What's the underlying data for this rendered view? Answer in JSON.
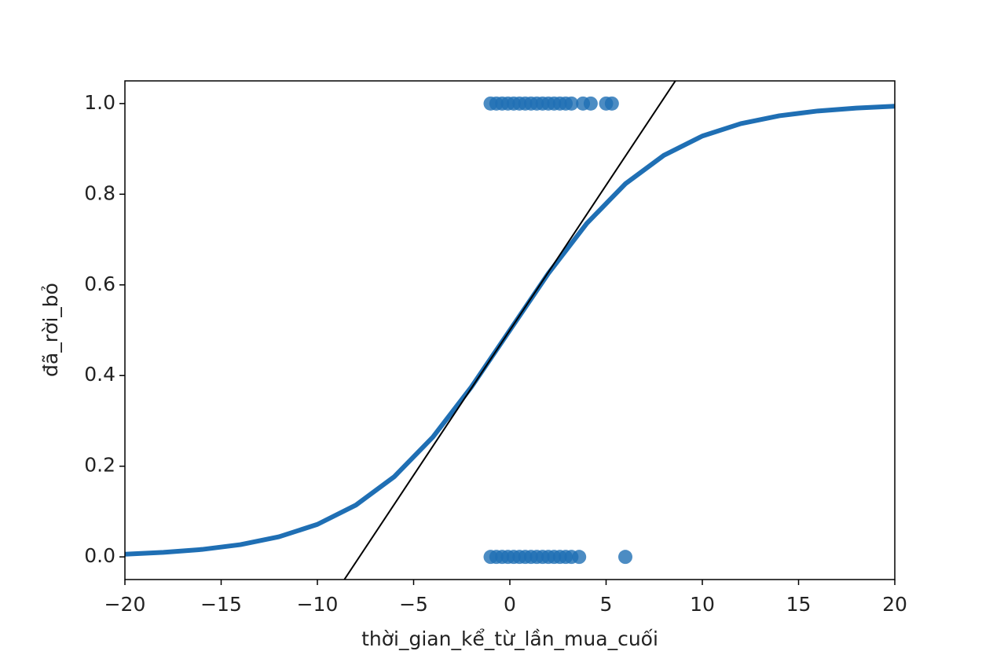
{
  "chart_data": {
    "type": "scatter",
    "xlabel": "thời_gian_kể_từ_lần_mua_cuối",
    "ylabel": "đã_rời_bỏ",
    "xlim": [
      -20,
      20
    ],
    "ylim": [
      -0.05,
      1.05
    ],
    "xticks": [
      {
        "value": -20,
        "label": "−20"
      },
      {
        "value": -15,
        "label": "−15"
      },
      {
        "value": -10,
        "label": "−10"
      },
      {
        "value": -5,
        "label": "−5"
      },
      0,
      5,
      10,
      15,
      20
    ],
    "yticks": [
      {
        "value": 0,
        "label": "0.0"
      },
      0.2,
      0.4,
      0.6,
      0.8,
      {
        "value": 1,
        "label": "1.0"
      }
    ],
    "points": {
      "color": "#1f6fb4",
      "x": [
        -1,
        -0.7,
        -0.4,
        -0.1,
        0.2,
        0.5,
        0.8,
        1.1,
        1.4,
        1.7,
        2.0,
        2.3,
        2.6,
        2.9,
        3.2,
        3.8,
        4.2,
        5.0,
        5.3,
        -1,
        -0.7,
        -0.4,
        -0.1,
        0.2,
        0.5,
        0.8,
        1.1,
        1.4,
        1.7,
        2.0,
        2.3,
        2.6,
        2.9,
        3.2,
        3.6,
        6.0
      ],
      "y": [
        1,
        1,
        1,
        1,
        1,
        1,
        1,
        1,
        1,
        1,
        1,
        1,
        1,
        1,
        1,
        1,
        1,
        1,
        1,
        0,
        0,
        0,
        0,
        0,
        0,
        0,
        0,
        0,
        0,
        0,
        0,
        0,
        0,
        0,
        0,
        0
      ]
    },
    "curve": {
      "color": "#1f6fb4",
      "x": [
        -20,
        -18,
        -16,
        -14,
        -12,
        -10,
        -8,
        -6,
        -4,
        -2,
        0,
        2,
        4,
        6,
        8,
        10,
        12,
        14,
        16,
        18,
        20
      ],
      "y": [
        0.0059,
        0.0099,
        0.0164,
        0.027,
        0.0443,
        0.0717,
        0.1143,
        0.1771,
        0.2643,
        0.3747,
        0.5,
        0.6253,
        0.7357,
        0.8229,
        0.8857,
        0.9283,
        0.9557,
        0.973,
        0.9836,
        0.9901,
        0.9941
      ]
    },
    "tangent": {
      "color": "#000000",
      "x": [
        -8.6,
        8.6
      ],
      "y": [
        -0.05,
        1.05
      ]
    }
  }
}
